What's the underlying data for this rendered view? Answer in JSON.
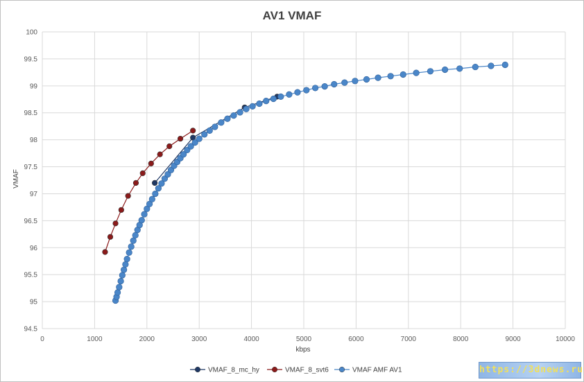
{
  "colors": {
    "mc_hy": "#1f3864",
    "svt6": "#8b1a1a",
    "amf": "#4a86c8",
    "grid": "#d9d9d9"
  },
  "watermark": "https://3dnews.ru",
  "chart_data": {
    "type": "scatter",
    "title": "AV1 VMAF",
    "xlabel": "kbps",
    "ylabel": "VMAF",
    "xlim": [
      0,
      10000
    ],
    "ylim": [
      94.5,
      100
    ],
    "x_ticks": [
      "0",
      "1000",
      "2000",
      "3000",
      "4000",
      "5000",
      "6000",
      "7000",
      "8000",
      "9000",
      "10000"
    ],
    "y_ticks": [
      "94.5",
      "95",
      "95.5",
      "96",
      "96.5",
      "97",
      "97.5",
      "98",
      "98.5",
      "99",
      "99.5",
      "100"
    ],
    "grid": true,
    "legend_position": "bottom",
    "series": [
      {
        "name": "VMAF_8_mc_hy",
        "color": "#1f3864",
        "x": [
          2150,
          2880,
          3870,
          4490
        ],
        "y": [
          97.2,
          98.04,
          98.6,
          98.8
        ]
      },
      {
        "name": "VMAF_8_svt6",
        "color": "#8b1a1a",
        "x": [
          1200,
          1300,
          1400,
          1510,
          1640,
          1790,
          1920,
          2080,
          2250,
          2430,
          2640,
          2880
        ],
        "y": [
          95.92,
          96.2,
          96.45,
          96.7,
          96.96,
          97.2,
          97.38,
          97.56,
          97.73,
          97.88,
          98.02,
          98.17
        ]
      },
      {
        "name": "VMAF AMF AV1",
        "color": "#4a86c8",
        "x": [
          1400,
          1420,
          1440,
          1470,
          1500,
          1530,
          1560,
          1590,
          1620,
          1660,
          1700,
          1740,
          1780,
          1820,
          1860,
          1900,
          1950,
          2000,
          2050,
          2100,
          2160,
          2220,
          2280,
          2340,
          2400,
          2460,
          2520,
          2580,
          2640,
          2700,
          2770,
          2840,
          2920,
          3000,
          3100,
          3200,
          3300,
          3420,
          3540,
          3660,
          3780,
          3900,
          4020,
          4150,
          4280,
          4420,
          4560,
          4720,
          4880,
          5050,
          5220,
          5400,
          5580,
          5780,
          5980,
          6200,
          6420,
          6660,
          6900,
          7150,
          7420,
          7700,
          7980,
          8280,
          8580,
          8850
        ],
        "y": [
          95.02,
          95.09,
          95.17,
          95.27,
          95.38,
          95.49,
          95.59,
          95.69,
          95.79,
          95.91,
          96.02,
          96.13,
          96.23,
          96.33,
          96.42,
          96.51,
          96.62,
          96.72,
          96.81,
          96.9,
          97.0,
          97.1,
          97.19,
          97.28,
          97.36,
          97.44,
          97.52,
          97.59,
          97.66,
          97.73,
          97.81,
          97.88,
          97.95,
          98.02,
          98.1,
          98.17,
          98.24,
          98.32,
          98.39,
          98.45,
          98.51,
          98.57,
          98.62,
          98.67,
          98.72,
          98.76,
          98.8,
          98.84,
          98.88,
          98.92,
          98.96,
          98.99,
          99.03,
          99.06,
          99.09,
          99.12,
          99.15,
          99.18,
          99.21,
          99.24,
          99.27,
          99.3,
          99.32,
          99.35,
          99.37,
          99.39
        ]
      }
    ]
  }
}
